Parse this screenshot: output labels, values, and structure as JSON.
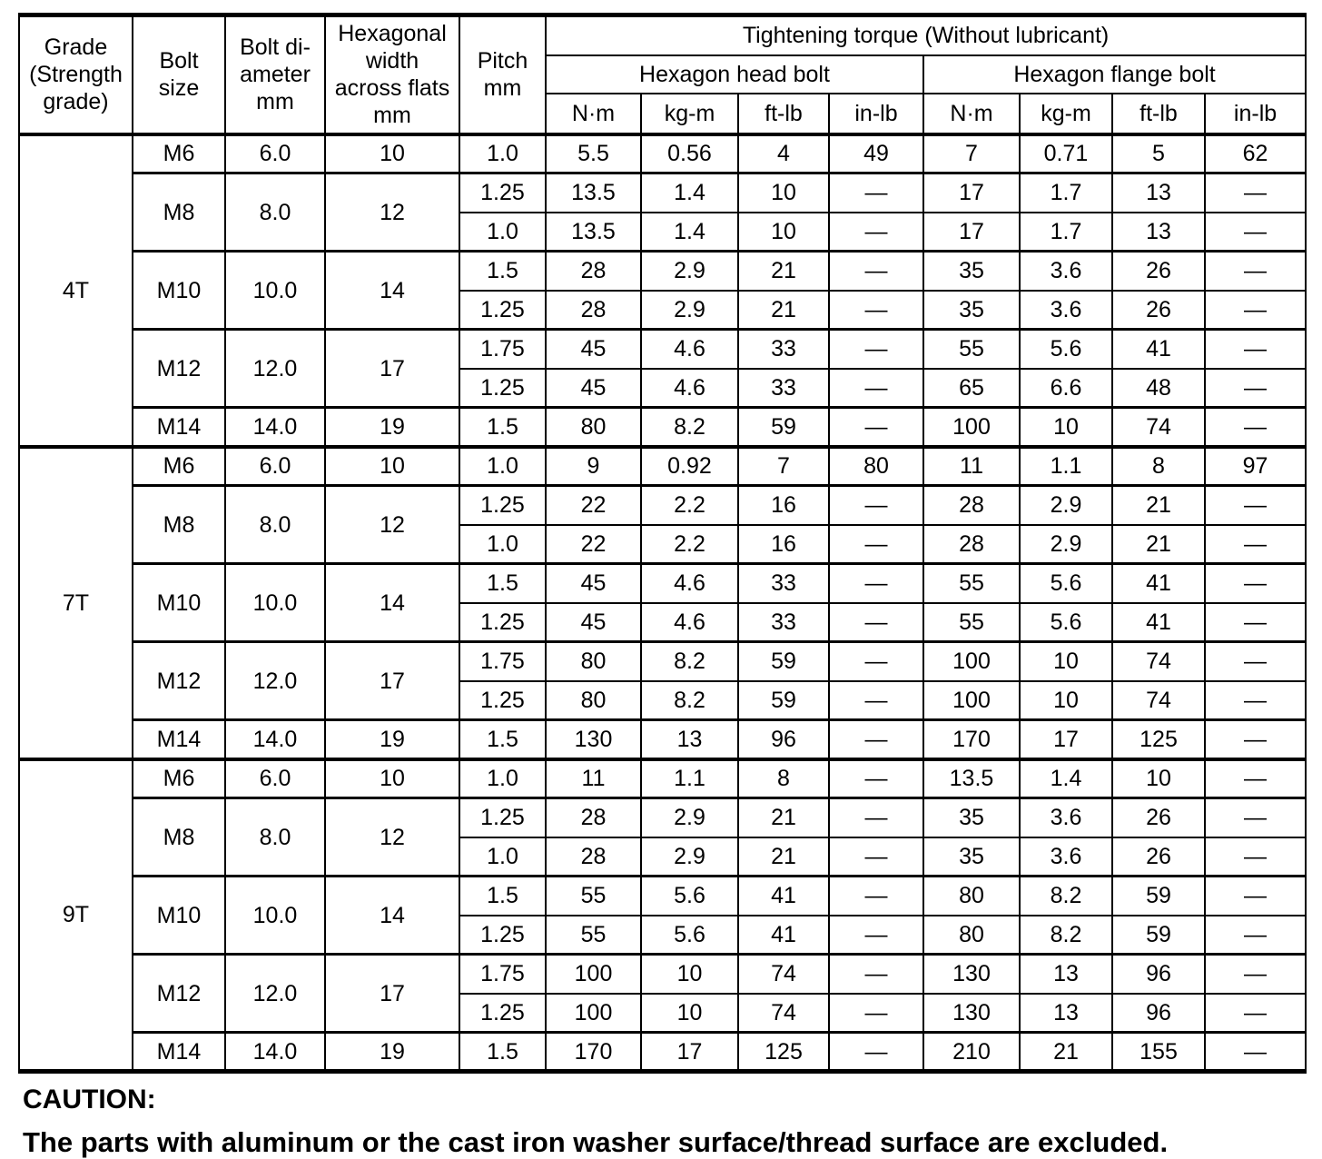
{
  "colors": {
    "text": "#000000",
    "background": "#ffffff",
    "border": "#000000"
  },
  "table": {
    "header": {
      "grade": "Grade\n(Strength\ngrade)",
      "bolt_size": "Bolt\nsize",
      "bolt_diameter": "Bolt di-\nameter\nmm",
      "hex_width": "Hexagonal\nwidth\nacross flats\nmm",
      "pitch": "Pitch\nmm",
      "torque_title": "Tightening torque (Without lubricant)",
      "head_bolt": "Hexagon head bolt",
      "flange_bolt": "Hexagon flange bolt",
      "units": [
        "N·m",
        "kg-m",
        "ft-lb",
        "in-lb"
      ]
    },
    "groups": [
      {
        "grade": "4T",
        "sizes": [
          {
            "size": "M6",
            "diameter": "6.0",
            "width": "10",
            "rows": [
              {
                "pitch": "1.0",
                "head": [
                  "5.5",
                  "0.56",
                  "4",
                  "49"
                ],
                "flange": [
                  "7",
                  "0.71",
                  "5",
                  "62"
                ]
              }
            ]
          },
          {
            "size": "M8",
            "diameter": "8.0",
            "width": "12",
            "rows": [
              {
                "pitch": "1.25",
                "head": [
                  "13.5",
                  "1.4",
                  "10",
                  "—"
                ],
                "flange": [
                  "17",
                  "1.7",
                  "13",
                  "—"
                ]
              },
              {
                "pitch": "1.0",
                "head": [
                  "13.5",
                  "1.4",
                  "10",
                  "—"
                ],
                "flange": [
                  "17",
                  "1.7",
                  "13",
                  "—"
                ]
              }
            ]
          },
          {
            "size": "M10",
            "diameter": "10.0",
            "width": "14",
            "rows": [
              {
                "pitch": "1.5",
                "head": [
                  "28",
                  "2.9",
                  "21",
                  "—"
                ],
                "flange": [
                  "35",
                  "3.6",
                  "26",
                  "—"
                ]
              },
              {
                "pitch": "1.25",
                "head": [
                  "28",
                  "2.9",
                  "21",
                  "—"
                ],
                "flange": [
                  "35",
                  "3.6",
                  "26",
                  "—"
                ]
              }
            ]
          },
          {
            "size": "M12",
            "diameter": "12.0",
            "width": "17",
            "rows": [
              {
                "pitch": "1.75",
                "head": [
                  "45",
                  "4.6",
                  "33",
                  "—"
                ],
                "flange": [
                  "55",
                  "5.6",
                  "41",
                  "—"
                ]
              },
              {
                "pitch": "1.25",
                "head": [
                  "45",
                  "4.6",
                  "33",
                  "—"
                ],
                "flange": [
                  "65",
                  "6.6",
                  "48",
                  "—"
                ]
              }
            ]
          },
          {
            "size": "M14",
            "diameter": "14.0",
            "width": "19",
            "rows": [
              {
                "pitch": "1.5",
                "head": [
                  "80",
                  "8.2",
                  "59",
                  "—"
                ],
                "flange": [
                  "100",
                  "10",
                  "74",
                  "—"
                ]
              }
            ]
          }
        ]
      },
      {
        "grade": "7T",
        "sizes": [
          {
            "size": "M6",
            "diameter": "6.0",
            "width": "10",
            "rows": [
              {
                "pitch": "1.0",
                "head": [
                  "9",
                  "0.92",
                  "7",
                  "80"
                ],
                "flange": [
                  "11",
                  "1.1",
                  "8",
                  "97"
                ]
              }
            ]
          },
          {
            "size": "M8",
            "diameter": "8.0",
            "width": "12",
            "rows": [
              {
                "pitch": "1.25",
                "head": [
                  "22",
                  "2.2",
                  "16",
                  "—"
                ],
                "flange": [
                  "28",
                  "2.9",
                  "21",
                  "—"
                ]
              },
              {
                "pitch": "1.0",
                "head": [
                  "22",
                  "2.2",
                  "16",
                  "—"
                ],
                "flange": [
                  "28",
                  "2.9",
                  "21",
                  "—"
                ]
              }
            ]
          },
          {
            "size": "M10",
            "diameter": "10.0",
            "width": "14",
            "rows": [
              {
                "pitch": "1.5",
                "head": [
                  "45",
                  "4.6",
                  "33",
                  "—"
                ],
                "flange": [
                  "55",
                  "5.6",
                  "41",
                  "—"
                ]
              },
              {
                "pitch": "1.25",
                "head": [
                  "45",
                  "4.6",
                  "33",
                  "—"
                ],
                "flange": [
                  "55",
                  "5.6",
                  "41",
                  "—"
                ]
              }
            ]
          },
          {
            "size": "M12",
            "diameter": "12.0",
            "width": "17",
            "rows": [
              {
                "pitch": "1.75",
                "head": [
                  "80",
                  "8.2",
                  "59",
                  "—"
                ],
                "flange": [
                  "100",
                  "10",
                  "74",
                  "—"
                ]
              },
              {
                "pitch": "1.25",
                "head": [
                  "80",
                  "8.2",
                  "59",
                  "—"
                ],
                "flange": [
                  "100",
                  "10",
                  "74",
                  "—"
                ]
              }
            ]
          },
          {
            "size": "M14",
            "diameter": "14.0",
            "width": "19",
            "rows": [
              {
                "pitch": "1.5",
                "head": [
                  "130",
                  "13",
                  "96",
                  "—"
                ],
                "flange": [
                  "170",
                  "17",
                  "125",
                  "—"
                ]
              }
            ]
          }
        ]
      },
      {
        "grade": "9T",
        "sizes": [
          {
            "size": "M6",
            "diameter": "6.0",
            "width": "10",
            "rows": [
              {
                "pitch": "1.0",
                "head": [
                  "11",
                  "1.1",
                  "8",
                  "—"
                ],
                "flange": [
                  "13.5",
                  "1.4",
                  "10",
                  "—"
                ]
              }
            ]
          },
          {
            "size": "M8",
            "diameter": "8.0",
            "width": "12",
            "rows": [
              {
                "pitch": "1.25",
                "head": [
                  "28",
                  "2.9",
                  "21",
                  "—"
                ],
                "flange": [
                  "35",
                  "3.6",
                  "26",
                  "—"
                ]
              },
              {
                "pitch": "1.0",
                "head": [
                  "28",
                  "2.9",
                  "21",
                  "—"
                ],
                "flange": [
                  "35",
                  "3.6",
                  "26",
                  "—"
                ]
              }
            ]
          },
          {
            "size": "M10",
            "diameter": "10.0",
            "width": "14",
            "rows": [
              {
                "pitch": "1.5",
                "head": [
                  "55",
                  "5.6",
                  "41",
                  "—"
                ],
                "flange": [
                  "80",
                  "8.2",
                  "59",
                  "—"
                ]
              },
              {
                "pitch": "1.25",
                "head": [
                  "55",
                  "5.6",
                  "41",
                  "—"
                ],
                "flange": [
                  "80",
                  "8.2",
                  "59",
                  "—"
                ]
              }
            ]
          },
          {
            "size": "M12",
            "diameter": "12.0",
            "width": "17",
            "rows": [
              {
                "pitch": "1.75",
                "head": [
                  "100",
                  "10",
                  "74",
                  "—"
                ],
                "flange": [
                  "130",
                  "13",
                  "96",
                  "—"
                ]
              },
              {
                "pitch": "1.25",
                "head": [
                  "100",
                  "10",
                  "74",
                  "—"
                ],
                "flange": [
                  "130",
                  "13",
                  "96",
                  "—"
                ]
              }
            ]
          },
          {
            "size": "M14",
            "diameter": "14.0",
            "width": "19",
            "rows": [
              {
                "pitch": "1.5",
                "head": [
                  "170",
                  "17",
                  "125",
                  "—"
                ],
                "flange": [
                  "210",
                  "21",
                  "155",
                  "—"
                ]
              }
            ]
          }
        ]
      }
    ]
  },
  "caution": {
    "title": "CAUTION:",
    "text": "The parts with aluminum or the cast iron washer surface/thread surface are excluded."
  }
}
